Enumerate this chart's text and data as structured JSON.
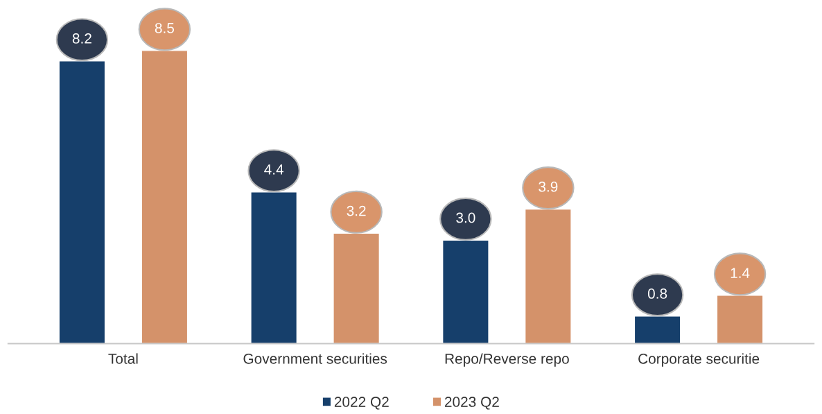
{
  "chart_data": {
    "type": "bar",
    "categories": [
      "Total",
      "Government securities",
      "Repo/Reverse repo",
      "Corporate securitie"
    ],
    "series": [
      {
        "name": "2022 Q2",
        "color": "#163f6b",
        "values": [
          8.2,
          4.4,
          3.0,
          0.8
        ],
        "value_labels": [
          "8.2",
          "4.4",
          "3.0",
          "0.8"
        ]
      },
      {
        "name": "2023 Q2",
        "color": "#d4926a",
        "values": [
          8.5,
          3.2,
          3.9,
          1.4
        ],
        "value_labels": [
          "8.5",
          "3.2",
          "3.9",
          "1.4"
        ]
      }
    ],
    "legend": "bottom"
  }
}
